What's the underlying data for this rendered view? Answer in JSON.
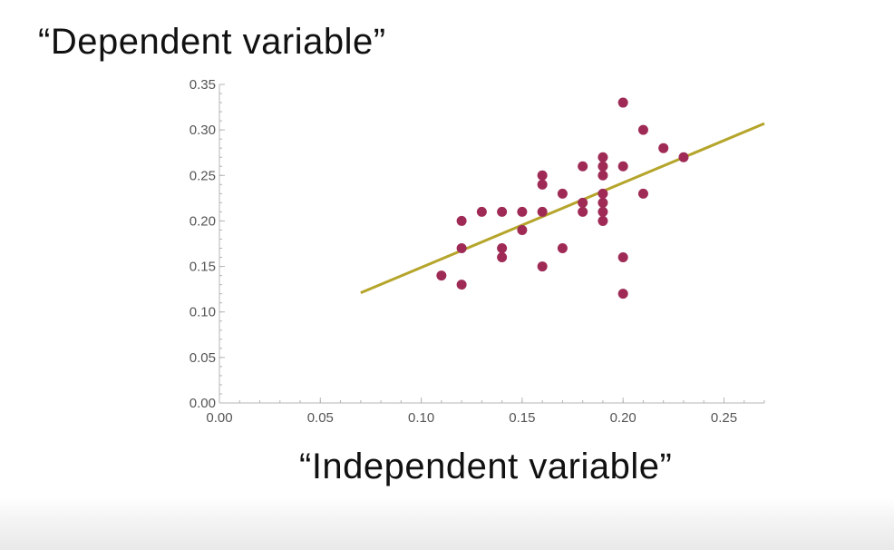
{
  "slide": {
    "ylabel_caption": "“Dependent variable”",
    "xlabel_caption": "“Independent variable”"
  },
  "chart_data": {
    "type": "scatter",
    "title": "",
    "xlabel": "“Independent variable”",
    "ylabel": "“Dependent variable”",
    "xlim": [
      0,
      0.27
    ],
    "ylim": [
      0,
      0.35
    ],
    "xticks": [
      "0.00",
      "0.05",
      "0.10",
      "0.15",
      "0.20",
      "0.25"
    ],
    "yticks": [
      "0.00",
      "0.05",
      "0.10",
      "0.15",
      "0.20",
      "0.25",
      "0.30",
      "0.35"
    ],
    "grid": false,
    "legend": "none",
    "point_color": "#9e2a55",
    "line_color": "#b5a52b",
    "points": [
      {
        "x": 0.11,
        "y": 0.14
      },
      {
        "x": 0.12,
        "y": 0.2
      },
      {
        "x": 0.12,
        "y": 0.17
      },
      {
        "x": 0.12,
        "y": 0.13
      },
      {
        "x": 0.13,
        "y": 0.21
      },
      {
        "x": 0.14,
        "y": 0.21
      },
      {
        "x": 0.14,
        "y": 0.17
      },
      {
        "x": 0.14,
        "y": 0.16
      },
      {
        "x": 0.15,
        "y": 0.21
      },
      {
        "x": 0.15,
        "y": 0.19
      },
      {
        "x": 0.16,
        "y": 0.25
      },
      {
        "x": 0.16,
        "y": 0.24
      },
      {
        "x": 0.16,
        "y": 0.21
      },
      {
        "x": 0.16,
        "y": 0.15
      },
      {
        "x": 0.17,
        "y": 0.23
      },
      {
        "x": 0.17,
        "y": 0.17
      },
      {
        "x": 0.18,
        "y": 0.26
      },
      {
        "x": 0.18,
        "y": 0.22
      },
      {
        "x": 0.18,
        "y": 0.21
      },
      {
        "x": 0.19,
        "y": 0.27
      },
      {
        "x": 0.19,
        "y": 0.26
      },
      {
        "x": 0.19,
        "y": 0.25
      },
      {
        "x": 0.19,
        "y": 0.23
      },
      {
        "x": 0.19,
        "y": 0.22
      },
      {
        "x": 0.19,
        "y": 0.21
      },
      {
        "x": 0.19,
        "y": 0.2
      },
      {
        "x": 0.2,
        "y": 0.33
      },
      {
        "x": 0.2,
        "y": 0.26
      },
      {
        "x": 0.2,
        "y": 0.16
      },
      {
        "x": 0.2,
        "y": 0.12
      },
      {
        "x": 0.21,
        "y": 0.3
      },
      {
        "x": 0.21,
        "y": 0.23
      },
      {
        "x": 0.22,
        "y": 0.28
      },
      {
        "x": 0.23,
        "y": 0.27
      }
    ],
    "fit_line": {
      "x1": 0.07,
      "y1": 0.121,
      "x2": 0.27,
      "y2": 0.307
    }
  }
}
